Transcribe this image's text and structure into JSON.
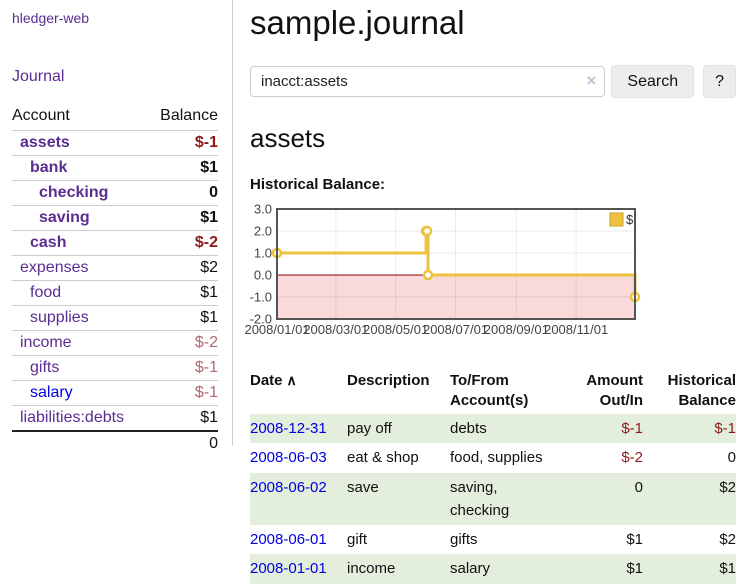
{
  "brand": "hledger-web",
  "sidebar": {
    "journal_link": "Journal",
    "accounts": {
      "header_account": "Account",
      "header_balance": "Balance",
      "rows": [
        {
          "name": "assets",
          "indent": 1,
          "emphasis": true,
          "balance": "$-1",
          "balance_tone": "negative-strong"
        },
        {
          "name": "bank",
          "indent": 2,
          "emphasis": true,
          "balance": "$1",
          "balance_tone": "normal"
        },
        {
          "name": "checking",
          "indent": 3,
          "emphasis": true,
          "balance": "0",
          "balance_tone": "normal"
        },
        {
          "name": "saving",
          "indent": 3,
          "emphasis": true,
          "balance": "$1",
          "balance_tone": "normal"
        },
        {
          "name": "cash",
          "indent": 2,
          "emphasis": true,
          "balance": "$-2",
          "balance_tone": "negative-strong"
        },
        {
          "name": "expenses",
          "indent": 1,
          "emphasis": false,
          "balance": "$2",
          "balance_tone": "normal"
        },
        {
          "name": "food",
          "indent": 2,
          "emphasis": false,
          "balance": "$1",
          "balance_tone": "normal"
        },
        {
          "name": "supplies",
          "indent": 2,
          "emphasis": false,
          "balance": "$1",
          "balance_tone": "normal"
        },
        {
          "name": "income",
          "indent": 1,
          "emphasis": false,
          "balance": "$-2",
          "balance_tone": "negative-soft"
        },
        {
          "name": "gifts",
          "indent": 2,
          "emphasis": false,
          "balance": "$-1",
          "balance_tone": "negative-soft"
        },
        {
          "name": "salary",
          "indent": 2,
          "emphasis": false,
          "balance": "$-1",
          "balance_tone": "negative-soft",
          "link_tone": "unvisited"
        },
        {
          "name": "liabilities:debts",
          "indent": 1,
          "emphasis": false,
          "balance": "$1",
          "balance_tone": "normal"
        }
      ],
      "total": "0"
    }
  },
  "header": {
    "title": "sample.journal"
  },
  "search": {
    "value": "inacct:assets",
    "clear_icon": "×",
    "button_label": "Search",
    "help_label": "?"
  },
  "account_view": {
    "heading": "assets",
    "chart_label": "Historical Balance:"
  },
  "chart_data": {
    "type": "line",
    "step": true,
    "title": "Historical Balance",
    "series": [
      {
        "name": "$",
        "points": [
          [
            "2008-01-01",
            1
          ],
          [
            "2008-06-01",
            2
          ],
          [
            "2008-06-02",
            2
          ],
          [
            "2008-06-03",
            0
          ],
          [
            "2008-12-31",
            -1
          ]
        ]
      }
    ],
    "x_start": "2008-01-01",
    "x_end": "2008-12-31",
    "x_ticks": [
      "2008/01/01",
      "2008/03/01",
      "2008/05/01",
      "2008/07/01",
      "2008/09/01",
      "2008/11/01"
    ],
    "y_ticks": [
      "3.0",
      "2.0",
      "1.0",
      "0.0",
      "-1.0",
      "-2.0"
    ],
    "ylim": [
      -2,
      3
    ],
    "grid": true,
    "legend": {
      "position": "top-right",
      "entries": [
        "$"
      ]
    },
    "colors": {
      "line": "#edc240",
      "marker_fill": "#ffffff",
      "negative_region": "#f9d9d9",
      "zero_line": "#8b0000",
      "border": "#545454",
      "grid_alpha": "rgba(0,0,0,0.08)"
    }
  },
  "register": {
    "sort_icon": "∧",
    "headers": {
      "date": "Date",
      "description": "Description",
      "accounts": "To/From Account(s)",
      "amount": "Amount Out/In",
      "balance": "Historical Balance"
    },
    "rows": [
      {
        "date": "2008-12-31",
        "description": "pay off",
        "accounts": "debts",
        "amount": "$-1",
        "amount_tone": "negative",
        "balance": "$-1",
        "balance_tone": "negative"
      },
      {
        "date": "2008-06-03",
        "description": "eat & shop",
        "accounts": "food, supplies",
        "amount": "$-2",
        "amount_tone": "negative",
        "balance": "0",
        "balance_tone": "normal"
      },
      {
        "date": "2008-06-02",
        "description": "save",
        "accounts": "saving, checking",
        "amount": "0",
        "amount_tone": "normal",
        "balance": "$2",
        "balance_tone": "normal"
      },
      {
        "date": "2008-06-01",
        "description": "gift",
        "accounts": "gifts",
        "amount": "$1",
        "amount_tone": "normal",
        "balance": "$2",
        "balance_tone": "normal"
      },
      {
        "date": "2008-01-01",
        "description": "income",
        "accounts": "salary",
        "amount": "$1",
        "amount_tone": "normal",
        "balance": "$1",
        "balance_tone": "normal"
      }
    ]
  }
}
